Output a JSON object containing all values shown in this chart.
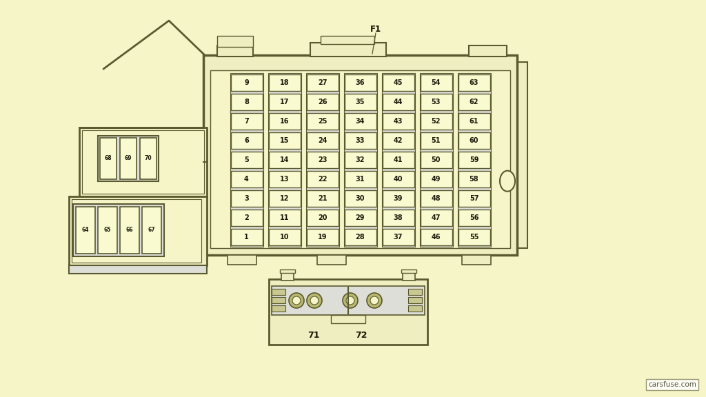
{
  "bg_color": "#F5F5C8",
  "line_color": "#5a5a30",
  "fuse_fill": "#F8F8DC",
  "fuse_border": "#5a5a30",
  "watermark": "carsfuse.com",
  "main_fuse_grid": {
    "col_labels": [
      [
        9,
        8,
        7,
        6,
        5,
        4,
        3,
        2,
        1
      ],
      [
        18,
        17,
        16,
        15,
        14,
        13,
        12,
        11,
        10
      ],
      [
        27,
        26,
        25,
        24,
        23,
        22,
        21,
        20,
        19
      ],
      [
        36,
        35,
        34,
        33,
        32,
        31,
        30,
        29,
        28
      ],
      [
        45,
        44,
        43,
        42,
        41,
        40,
        39,
        38,
        37
      ],
      [
        54,
        53,
        52,
        51,
        50,
        49,
        48,
        47,
        46
      ],
      [
        63,
        62,
        61,
        60,
        59,
        58,
        57,
        56,
        55
      ]
    ]
  },
  "relay_top_labels": [
    "68",
    "69",
    "70"
  ],
  "relay_bot_labels": [
    "64",
    "65",
    "66",
    "67"
  ],
  "bottom_labels": [
    "71",
    "72"
  ]
}
